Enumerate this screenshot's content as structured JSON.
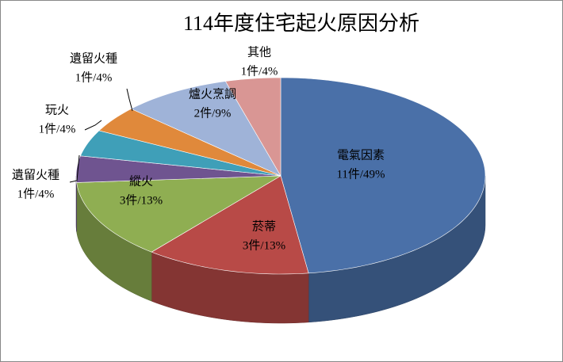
{
  "chart_data": {
    "type": "pie3d",
    "title": "114年度住宅起火原因分析",
    "categories": [
      "電氣因素",
      "菸蒂",
      "縱火",
      "遺留火種",
      "玩火",
      "遺留火種",
      "爐火烹調",
      "其他"
    ],
    "values": [
      11,
      3,
      3,
      1,
      1,
      1,
      2,
      1
    ],
    "value_labels": [
      "11件/49%",
      "3件/13%",
      "3件/13%",
      "1件/4%",
      "1件/4%",
      "1件/4%",
      "2件/9%",
      "1件/4%"
    ],
    "colors": [
      "#4a70a8",
      "#b84a47",
      "#8fae52",
      "#6f5490",
      "#3f9fb8",
      "#e0893b",
      "#9fb3d8",
      "#d99694"
    ]
  }
}
